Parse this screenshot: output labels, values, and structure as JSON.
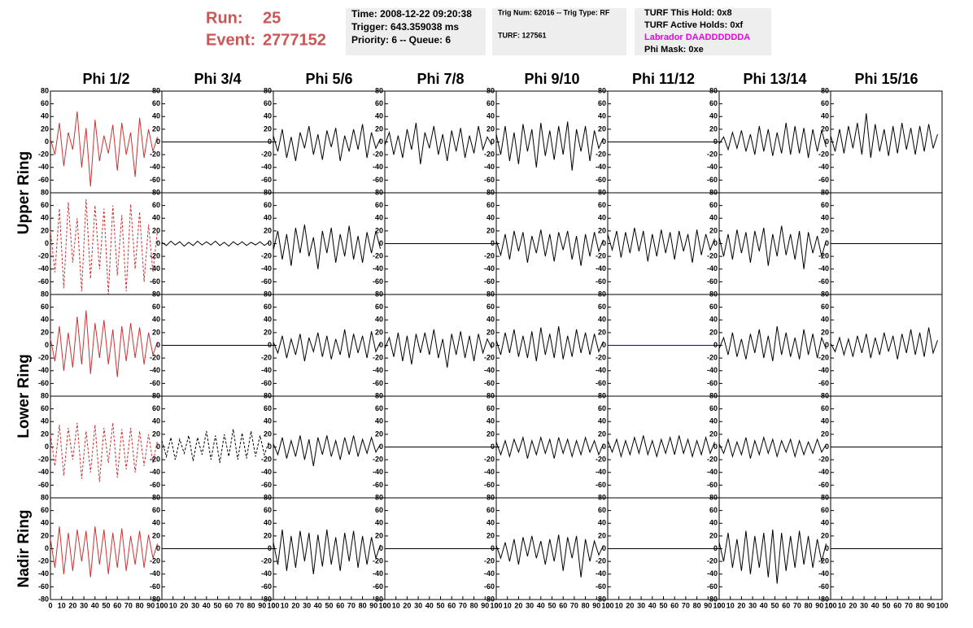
{
  "header": {
    "run_label": "Run:",
    "run": "25",
    "event_label": "Event:",
    "event": "2777152",
    "box1": [
      "Time: 2008-12-22 09:20:38",
      "Trigger: 643.359038 ms",
      "Priority: 6 -- Queue: 6"
    ],
    "box2": [
      "Trig Num: 62016 -- Trig Type: RF",
      "TURF: 127561"
    ],
    "box3": [
      "TURF This Hold: 0x8",
      "TURF Active Holds: 0xf",
      "Labrador DAADDDDDDA",
      "Phi Mask: 0xe"
    ],
    "box3_colors": [
      "#000000",
      "#000000",
      "#ee00ee",
      "#000000"
    ]
  },
  "chart_data": {
    "type": "line",
    "columns": [
      "Phi 1/2",
      "Phi 3/4",
      "Phi 5/6",
      "Phi 7/8",
      "Phi 9/10",
      "Phi 11/12",
      "Phi 13/14",
      "Phi 15/16"
    ],
    "ring_labels": [
      "Upper Ring",
      "Lower Ring",
      "Nadir Ring"
    ],
    "xlim": [
      0,
      100
    ],
    "ylim": [
      -80,
      80
    ],
    "xticks": [
      0,
      10,
      20,
      30,
      40,
      50,
      60,
      70,
      80,
      90,
      100
    ],
    "yticks": [
      -80,
      -60,
      -40,
      -20,
      0,
      20,
      40,
      60,
      80
    ],
    "x": [
      0,
      4,
      8,
      12,
      16,
      20,
      24,
      28,
      32,
      36,
      40,
      44,
      48,
      52,
      56,
      60,
      64,
      68,
      72,
      76,
      80,
      84,
      88,
      92,
      96
    ],
    "panels": [
      [
        {
          "color": "#cc3333",
          "values": [
            5,
            -20,
            30,
            -38,
            15,
            -12,
            48,
            -40,
            22,
            -70,
            35,
            -30,
            10,
            -18,
            27,
            -45,
            30,
            -20,
            15,
            -55,
            38,
            -25,
            20,
            -15,
            8
          ]
        },
        {
          "color": "#000000",
          "x": [
            0,
            100
          ],
          "values": [
            0,
            0
          ]
        },
        {
          "color": "#000000",
          "values": [
            10,
            -15,
            20,
            -25,
            8,
            -30,
            15,
            -10,
            25,
            -20,
            12,
            -28,
            18,
            -8,
            22,
            -30,
            10,
            -15,
            20,
            -12,
            28,
            -25,
            15,
            -10,
            5
          ]
        },
        {
          "color": "#000000",
          "values": [
            -5,
            15,
            -20,
            10,
            -25,
            20,
            -12,
            30,
            -35,
            15,
            -10,
            25,
            -20,
            12,
            -30,
            18,
            -15,
            22,
            -25,
            10,
            -18,
            25,
            -12,
            8,
            -5
          ]
        },
        {
          "color": "#000000",
          "values": [
            12,
            -20,
            25,
            -30,
            15,
            -35,
            28,
            -15,
            20,
            -40,
            30,
            -22,
            18,
            -28,
            25,
            -20,
            32,
            -45,
            20,
            -15,
            25,
            -30,
            18,
            -10,
            6
          ]
        },
        {
          "color": "#000000",
          "x": [
            0,
            100
          ],
          "values": [
            0,
            0
          ]
        },
        {
          "color": "#000000",
          "values": [
            -3,
            8,
            -12,
            15,
            -10,
            18,
            -15,
            12,
            -20,
            25,
            -15,
            20,
            -22,
            15,
            -18,
            30,
            -20,
            25,
            -18,
            22,
            -25,
            20,
            -15,
            18,
            -8
          ]
        },
        {
          "color": "#000000",
          "values": [
            10,
            -15,
            20,
            -18,
            25,
            -10,
            30,
            -20,
            45,
            -25,
            28,
            -15,
            20,
            -22,
            25,
            -18,
            30,
            -12,
            22,
            -20,
            25,
            -15,
            28,
            -10,
            12
          ]
        }
      ],
      [
        {
          "color": "#cc3333",
          "dash": true,
          "values": [
            20,
            -45,
            55,
            -70,
            65,
            -30,
            40,
            -75,
            70,
            -55,
            60,
            -40,
            55,
            -80,
            60,
            -50,
            45,
            -75,
            62,
            -40,
            50,
            -60,
            30,
            -45,
            20
          ]
        },
        {
          "color": "#000000",
          "values": [
            2,
            -3,
            4,
            -2,
            3,
            -4,
            2,
            -3,
            4,
            -2,
            3,
            -2,
            4,
            -3,
            2,
            -4,
            3,
            -2,
            3,
            -3,
            2,
            -2,
            3,
            -3,
            2
          ]
        },
        {
          "color": "#000000",
          "values": [
            -10,
            20,
            -25,
            15,
            -35,
            25,
            -15,
            30,
            -20,
            10,
            -40,
            20,
            -15,
            25,
            -30,
            15,
            -20,
            28,
            -25,
            12,
            -30,
            18,
            -15,
            20,
            -8
          ]
        },
        {
          "color": "#000000",
          "x": [
            0,
            100
          ],
          "values": [
            0,
            0
          ]
        },
        {
          "color": "#000000",
          "values": [
            5,
            -18,
            15,
            -25,
            20,
            -12,
            18,
            -30,
            12,
            -15,
            22,
            -20,
            15,
            -28,
            18,
            -10,
            20,
            -25,
            12,
            -35,
            15,
            -20,
            18,
            -12,
            6
          ]
        },
        {
          "color": "#000000",
          "values": [
            15,
            -10,
            20,
            -22,
            18,
            -15,
            25,
            -12,
            20,
            -28,
            15,
            -20,
            22,
            -15,
            18,
            -25,
            20,
            -12,
            15,
            -30,
            22,
            -18,
            15,
            -10,
            8
          ]
        },
        {
          "color": "#000000",
          "values": [
            10,
            -20,
            15,
            -25,
            22,
            -15,
            18,
            -30,
            20,
            -12,
            25,
            -35,
            15,
            -20,
            28,
            -18,
            15,
            -25,
            20,
            -40,
            18,
            -15,
            12,
            -20,
            5
          ]
        },
        {
          "color": "#000000",
          "x": [
            0,
            100
          ],
          "values": [
            0,
            0
          ]
        }
      ],
      [
        {
          "color": "#cc3333",
          "values": [
            10,
            -25,
            30,
            -40,
            20,
            -35,
            45,
            -30,
            55,
            -45,
            35,
            -20,
            40,
            -30,
            25,
            -50,
            30,
            -25,
            35,
            -20,
            28,
            -30,
            20,
            -15,
            5
          ]
        },
        {
          "color": "#000000",
          "x": [
            0,
            100
          ],
          "values": [
            0,
            0
          ]
        },
        {
          "color": "#000000",
          "values": [
            5,
            -12,
            15,
            -20,
            10,
            -15,
            18,
            -25,
            12,
            -10,
            20,
            -18,
            15,
            -22,
            10,
            -15,
            25,
            -20,
            18,
            -12,
            15,
            -20,
            22,
            -10,
            5
          ]
        },
        {
          "color": "#000000",
          "values": [
            -5,
            12,
            -18,
            20,
            -25,
            15,
            -30,
            18,
            -12,
            20,
            -15,
            25,
            -20,
            10,
            -35,
            18,
            -15,
            22,
            -20,
            15,
            -25,
            18,
            -12,
            10,
            -5
          ]
        },
        {
          "color": "#000000",
          "values": [
            8,
            -15,
            20,
            -12,
            25,
            -18,
            15,
            -20,
            22,
            -25,
            28,
            -15,
            18,
            -20,
            30,
            -22,
            15,
            -18,
            25,
            -12,
            20,
            -15,
            18,
            -10,
            6
          ]
        },
        {
          "color": "#0000cc",
          "x": [
            0,
            100
          ],
          "values": [
            0,
            0
          ]
        },
        {
          "color": "#000000",
          "values": [
            -5,
            12,
            -15,
            20,
            -18,
            10,
            -22,
            18,
            -12,
            25,
            -20,
            15,
            -25,
            30,
            -15,
            20,
            -18,
            12,
            -22,
            25,
            -15,
            18,
            -20,
            12,
            -6
          ]
        },
        {
          "color": "#000000",
          "values": [
            3,
            -10,
            12,
            -15,
            10,
            -18,
            15,
            -12,
            18,
            -20,
            12,
            -15,
            20,
            -10,
            15,
            -22,
            18,
            -12,
            25,
            -15,
            20,
            -18,
            28,
            -12,
            8
          ]
        }
      ],
      [
        {
          "color": "#cc3333",
          "dash": true,
          "values": [
            20,
            -30,
            35,
            -45,
            30,
            -20,
            38,
            -50,
            25,
            -40,
            35,
            -55,
            30,
            -25,
            38,
            -48,
            28,
            -35,
            30,
            -40,
            25,
            -30,
            20,
            -25,
            10
          ]
        },
        {
          "color": "#000000",
          "dash": true,
          "values": [
            10,
            -15,
            15,
            -20,
            12,
            -10,
            18,
            -22,
            15,
            -12,
            25,
            -20,
            18,
            -25,
            20,
            -15,
            28,
            -20,
            22,
            -18,
            25,
            -15,
            18,
            -12,
            8
          ]
        },
        {
          "color": "#000000",
          "values": [
            5,
            -12,
            15,
            -18,
            10,
            -15,
            18,
            -20,
            12,
            -30,
            15,
            -12,
            18,
            -15,
            10,
            -20,
            15,
            -12,
            18,
            -15,
            12,
            -10,
            15,
            -8,
            4
          ]
        },
        {
          "color": "#000000",
          "x": [
            0,
            100
          ],
          "values": [
            0,
            0
          ]
        },
        {
          "color": "#000000",
          "values": [
            8,
            -12,
            10,
            -15,
            12,
            -8,
            15,
            -18,
            10,
            -12,
            15,
            -10,
            12,
            -18,
            15,
            -10,
            12,
            -15,
            10,
            -12,
            15,
            -8,
            10,
            -12,
            5
          ]
        },
        {
          "color": "#000000",
          "values": [
            10,
            -8,
            12,
            -15,
            10,
            -12,
            15,
            -10,
            18,
            -12,
            10,
            -15,
            12,
            -10,
            15,
            -12,
            18,
            -10,
            12,
            -15,
            10,
            -12,
            15,
            -10,
            8
          ]
        },
        {
          "color": "#000000",
          "values": [
            5,
            -10,
            12,
            -15,
            8,
            -12,
            15,
            -18,
            10,
            -12,
            15,
            -10,
            12,
            -15,
            10,
            -8,
            12,
            -15,
            10,
            -12,
            8,
            -10,
            12,
            -8,
            4
          ]
        },
        {
          "color": "#000000",
          "x": [
            0,
            100
          ],
          "values": [
            0,
            0
          ]
        }
      ],
      [
        {
          "color": "#cc3333",
          "values": [
            15,
            -30,
            35,
            -40,
            25,
            -35,
            30,
            -20,
            28,
            -45,
            35,
            -25,
            30,
            -40,
            25,
            -30,
            32,
            -35,
            20,
            -25,
            28,
            -30,
            22,
            -15,
            8
          ]
        },
        {
          "color": "#000000",
          "x": [
            0,
            100
          ],
          "values": [
            0,
            0
          ]
        },
        {
          "color": "#000000",
          "values": [
            10,
            -25,
            30,
            -35,
            20,
            -30,
            28,
            -20,
            25,
            -40,
            22,
            -28,
            30,
            -25,
            18,
            -35,
            25,
            -20,
            28,
            -30,
            20,
            -25,
            18,
            -15,
            6
          ]
        },
        {
          "color": "#000000",
          "x": [
            0,
            100
          ],
          "values": [
            0,
            0
          ]
        },
        {
          "color": "#000000",
          "values": [
            5,
            -15,
            10,
            -20,
            15,
            -25,
            18,
            -12,
            20,
            -15,
            12,
            -25,
            15,
            -20,
            22,
            -35,
            18,
            -15,
            20,
            -45,
            15,
            -20,
            12,
            -10,
            5
          ]
        },
        {
          "color": "#000000",
          "x": [
            0,
            100
          ],
          "values": [
            0,
            0
          ]
        },
        {
          "color": "#000000",
          "values": [
            10,
            -20,
            25,
            -30,
            15,
            -35,
            28,
            -40,
            20,
            -30,
            25,
            -45,
            30,
            -55,
            25,
            -35,
            20,
            -30,
            28,
            -25,
            20,
            -30,
            15,
            -20,
            8
          ]
        },
        {
          "color": "#000000",
          "x": [
            0,
            100
          ],
          "values": [
            0,
            0
          ]
        }
      ]
    ]
  }
}
